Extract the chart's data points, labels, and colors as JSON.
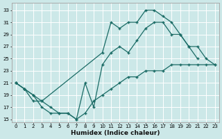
{
  "xlabel": "Humidex (Indice chaleur)",
  "bg_color": "#cce8e8",
  "grid_color": "#b8d8d8",
  "line_color": "#1a6b65",
  "xlim": [
    -0.5,
    23.5
  ],
  "ylim": [
    14.5,
    34.2
  ],
  "xticks": [
    0,
    1,
    2,
    3,
    4,
    5,
    6,
    7,
    8,
    9,
    10,
    11,
    12,
    13,
    14,
    15,
    16,
    17,
    18,
    19,
    20,
    21,
    22,
    23
  ],
  "yticks": [
    15,
    17,
    19,
    21,
    23,
    25,
    27,
    29,
    31,
    33
  ],
  "series": [
    {
      "x": [
        0,
        1,
        2,
        3,
        10,
        11,
        12,
        13,
        14,
        15,
        16,
        17,
        18,
        19,
        20,
        21,
        22,
        23
      ],
      "y": [
        21,
        20,
        19,
        18,
        26,
        31,
        30,
        31,
        31,
        33,
        33,
        32,
        31,
        29,
        27,
        27,
        25,
        24
      ]
    },
    {
      "x": [
        0,
        1,
        2,
        3,
        4,
        5,
        6,
        7,
        8,
        9,
        10,
        11,
        12,
        13,
        14,
        15,
        16,
        17,
        18,
        19,
        20,
        21
      ],
      "y": [
        21,
        20,
        19,
        17,
        16,
        16,
        16,
        15,
        21,
        17,
        24,
        26,
        27,
        26,
        28,
        30,
        31,
        31,
        29,
        29,
        27,
        25
      ]
    },
    {
      "x": [
        0,
        1,
        2,
        3,
        4,
        5,
        6,
        7,
        8,
        9,
        10,
        11,
        12,
        13,
        14,
        15,
        16,
        17,
        18,
        19,
        20,
        21,
        22,
        23
      ],
      "y": [
        21,
        20,
        18,
        18,
        17,
        16,
        16,
        15,
        16,
        18,
        19,
        20,
        21,
        22,
        22,
        23,
        23,
        23,
        24,
        24,
        24,
        24,
        24,
        24
      ]
    }
  ]
}
